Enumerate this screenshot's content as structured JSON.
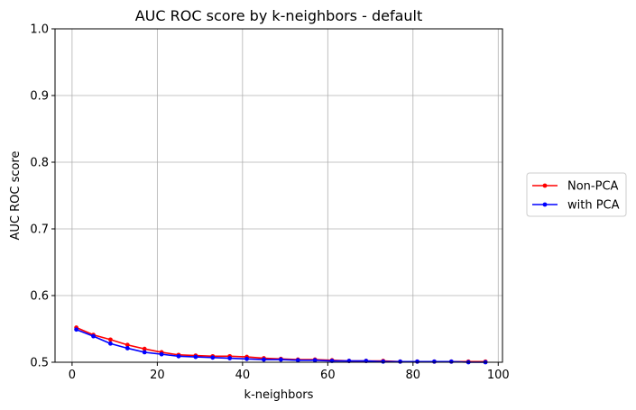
{
  "chart_data": {
    "type": "line",
    "title": "AUC ROC score by k-neighbors - default",
    "xlabel": "k-neighbors",
    "ylabel": "AUC ROC score",
    "xlim": [
      -4,
      101
    ],
    "ylim": [
      0.5,
      1.0
    ],
    "xticks": [
      0,
      20,
      40,
      60,
      80,
      100
    ],
    "yticks": [
      0.5,
      0.6,
      0.7,
      0.8,
      0.9,
      1.0
    ],
    "xtick_labels": [
      "0",
      "20",
      "40",
      "60",
      "80",
      "100"
    ],
    "ytick_labels": [
      "0.5",
      "0.6",
      "0.7",
      "0.8",
      "0.9",
      "1.0"
    ],
    "grid": true,
    "legend_position": "right-outside",
    "x": [
      1,
      5,
      9,
      13,
      17,
      21,
      25,
      29,
      33,
      37,
      41,
      45,
      49,
      53,
      57,
      61,
      65,
      69,
      73,
      77,
      81,
      85,
      89,
      93,
      97
    ],
    "series": [
      {
        "name": "Non-PCA",
        "color": "#ff0000",
        "values": [
          0.552,
          0.541,
          0.534,
          0.526,
          0.52,
          0.515,
          0.511,
          0.51,
          0.509,
          0.509,
          0.508,
          0.506,
          0.505,
          0.504,
          0.504,
          0.503,
          0.502,
          0.502,
          0.502,
          0.501,
          0.501,
          0.501,
          0.501,
          0.501,
          0.501
        ]
      },
      {
        "name": "with PCA",
        "color": "#0000ff",
        "values": [
          0.549,
          0.539,
          0.528,
          0.521,
          0.515,
          0.512,
          0.509,
          0.508,
          0.507,
          0.506,
          0.505,
          0.504,
          0.504,
          0.503,
          0.503,
          0.502,
          0.502,
          0.502,
          0.501,
          0.501,
          0.501,
          0.501,
          0.501,
          0.5,
          0.5
        ]
      }
    ]
  }
}
